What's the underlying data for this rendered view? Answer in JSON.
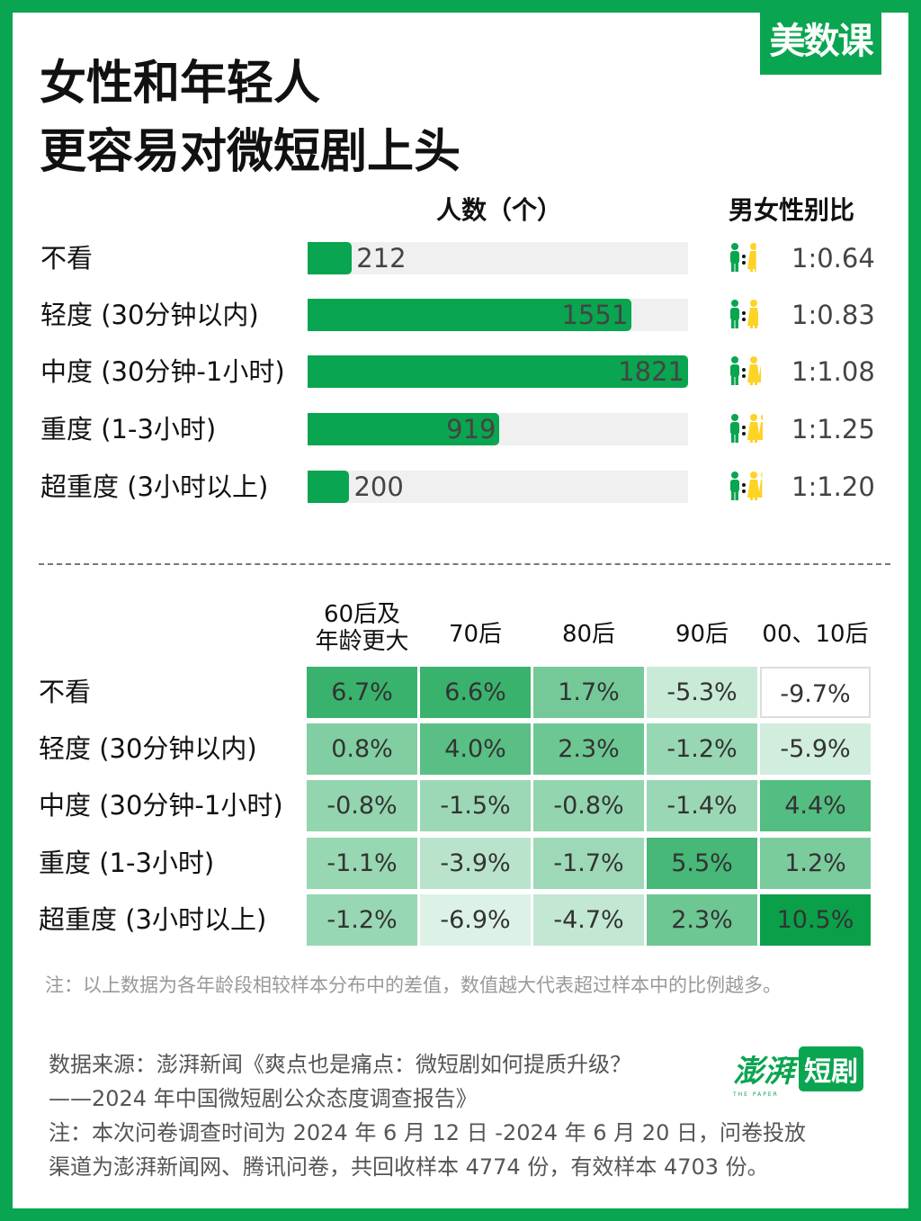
{
  "brand": "美数课",
  "title": [
    "女性和年轻人",
    "更容易对微短剧上头"
  ],
  "colors": {
    "green": "#0aa550",
    "female": "#fdd325",
    "track": "#f0f0f0"
  },
  "chart_data": [
    {
      "type": "bar",
      "orientation": "horizontal",
      "header": "人数（个）",
      "ratio_header": "男女性别比",
      "categories": [
        "不看",
        "轻度 (30分钟以内)",
        "中度 (30分钟-1小时)",
        "重度 (1-3小时)",
        "超重度 (3小时以上)"
      ],
      "values": [
        212,
        1551,
        1821,
        919,
        200
      ],
      "ratios": [
        "1:0.64",
        "1:0.83",
        "1:1.08",
        "1:1.25",
        "1:1.20"
      ],
      "ratio_values": [
        0.64,
        0.83,
        1.08,
        1.25,
        1.2
      ]
    },
    {
      "type": "heatmap",
      "columns": [
        "60后及\n年龄更大",
        "70后",
        "80后",
        "90后",
        "00、10后"
      ],
      "rows": [
        "不看",
        "轻度 (30分钟以内)",
        "中度 (30分钟-1小时)",
        "重度 (1-3小时)",
        "超重度 (3小时以上)"
      ],
      "values": [
        [
          6.7,
          6.6,
          1.7,
          -5.3,
          -9.7
        ],
        [
          0.8,
          4.0,
          2.3,
          -1.2,
          -5.9
        ],
        [
          -0.8,
          -1.5,
          -0.8,
          -1.4,
          4.4
        ],
        [
          -1.1,
          -3.9,
          -1.7,
          5.5,
          1.2
        ],
        [
          -1.2,
          -6.9,
          -4.7,
          2.3,
          10.5
        ]
      ],
      "unit": "%"
    }
  ],
  "note": "注：以上数据为各年龄段相较样本分布中的差值，数值越大代表超过样本中的比例越多。",
  "source": [
    "数据来源：澎湃新闻《爽点也是痛点：微短剧如何提质升级？",
    "——2024 年中国微短剧公众态度调查报告》",
    "注：本次问卷调查时间为 2024 年 6 月 12 日 -2024 年 6 月 20 日，问卷投放",
    "渠道为澎湃新闻网、腾讯问卷，共回收样本 4774 份，有效样本 4703 份。"
  ],
  "source_logo": {
    "text": "澎湃",
    "badge": "短剧",
    "sub": "THE PAPER"
  }
}
